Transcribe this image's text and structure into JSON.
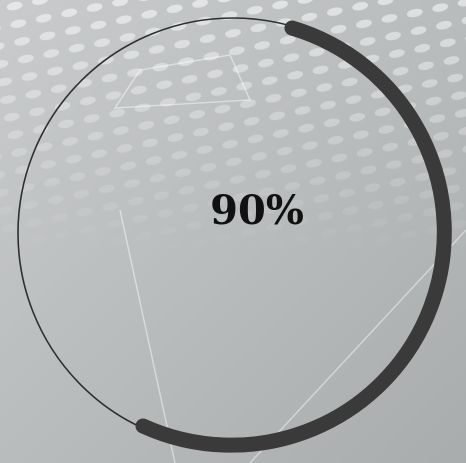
{
  "progress": {
    "label": "90%"
  }
}
